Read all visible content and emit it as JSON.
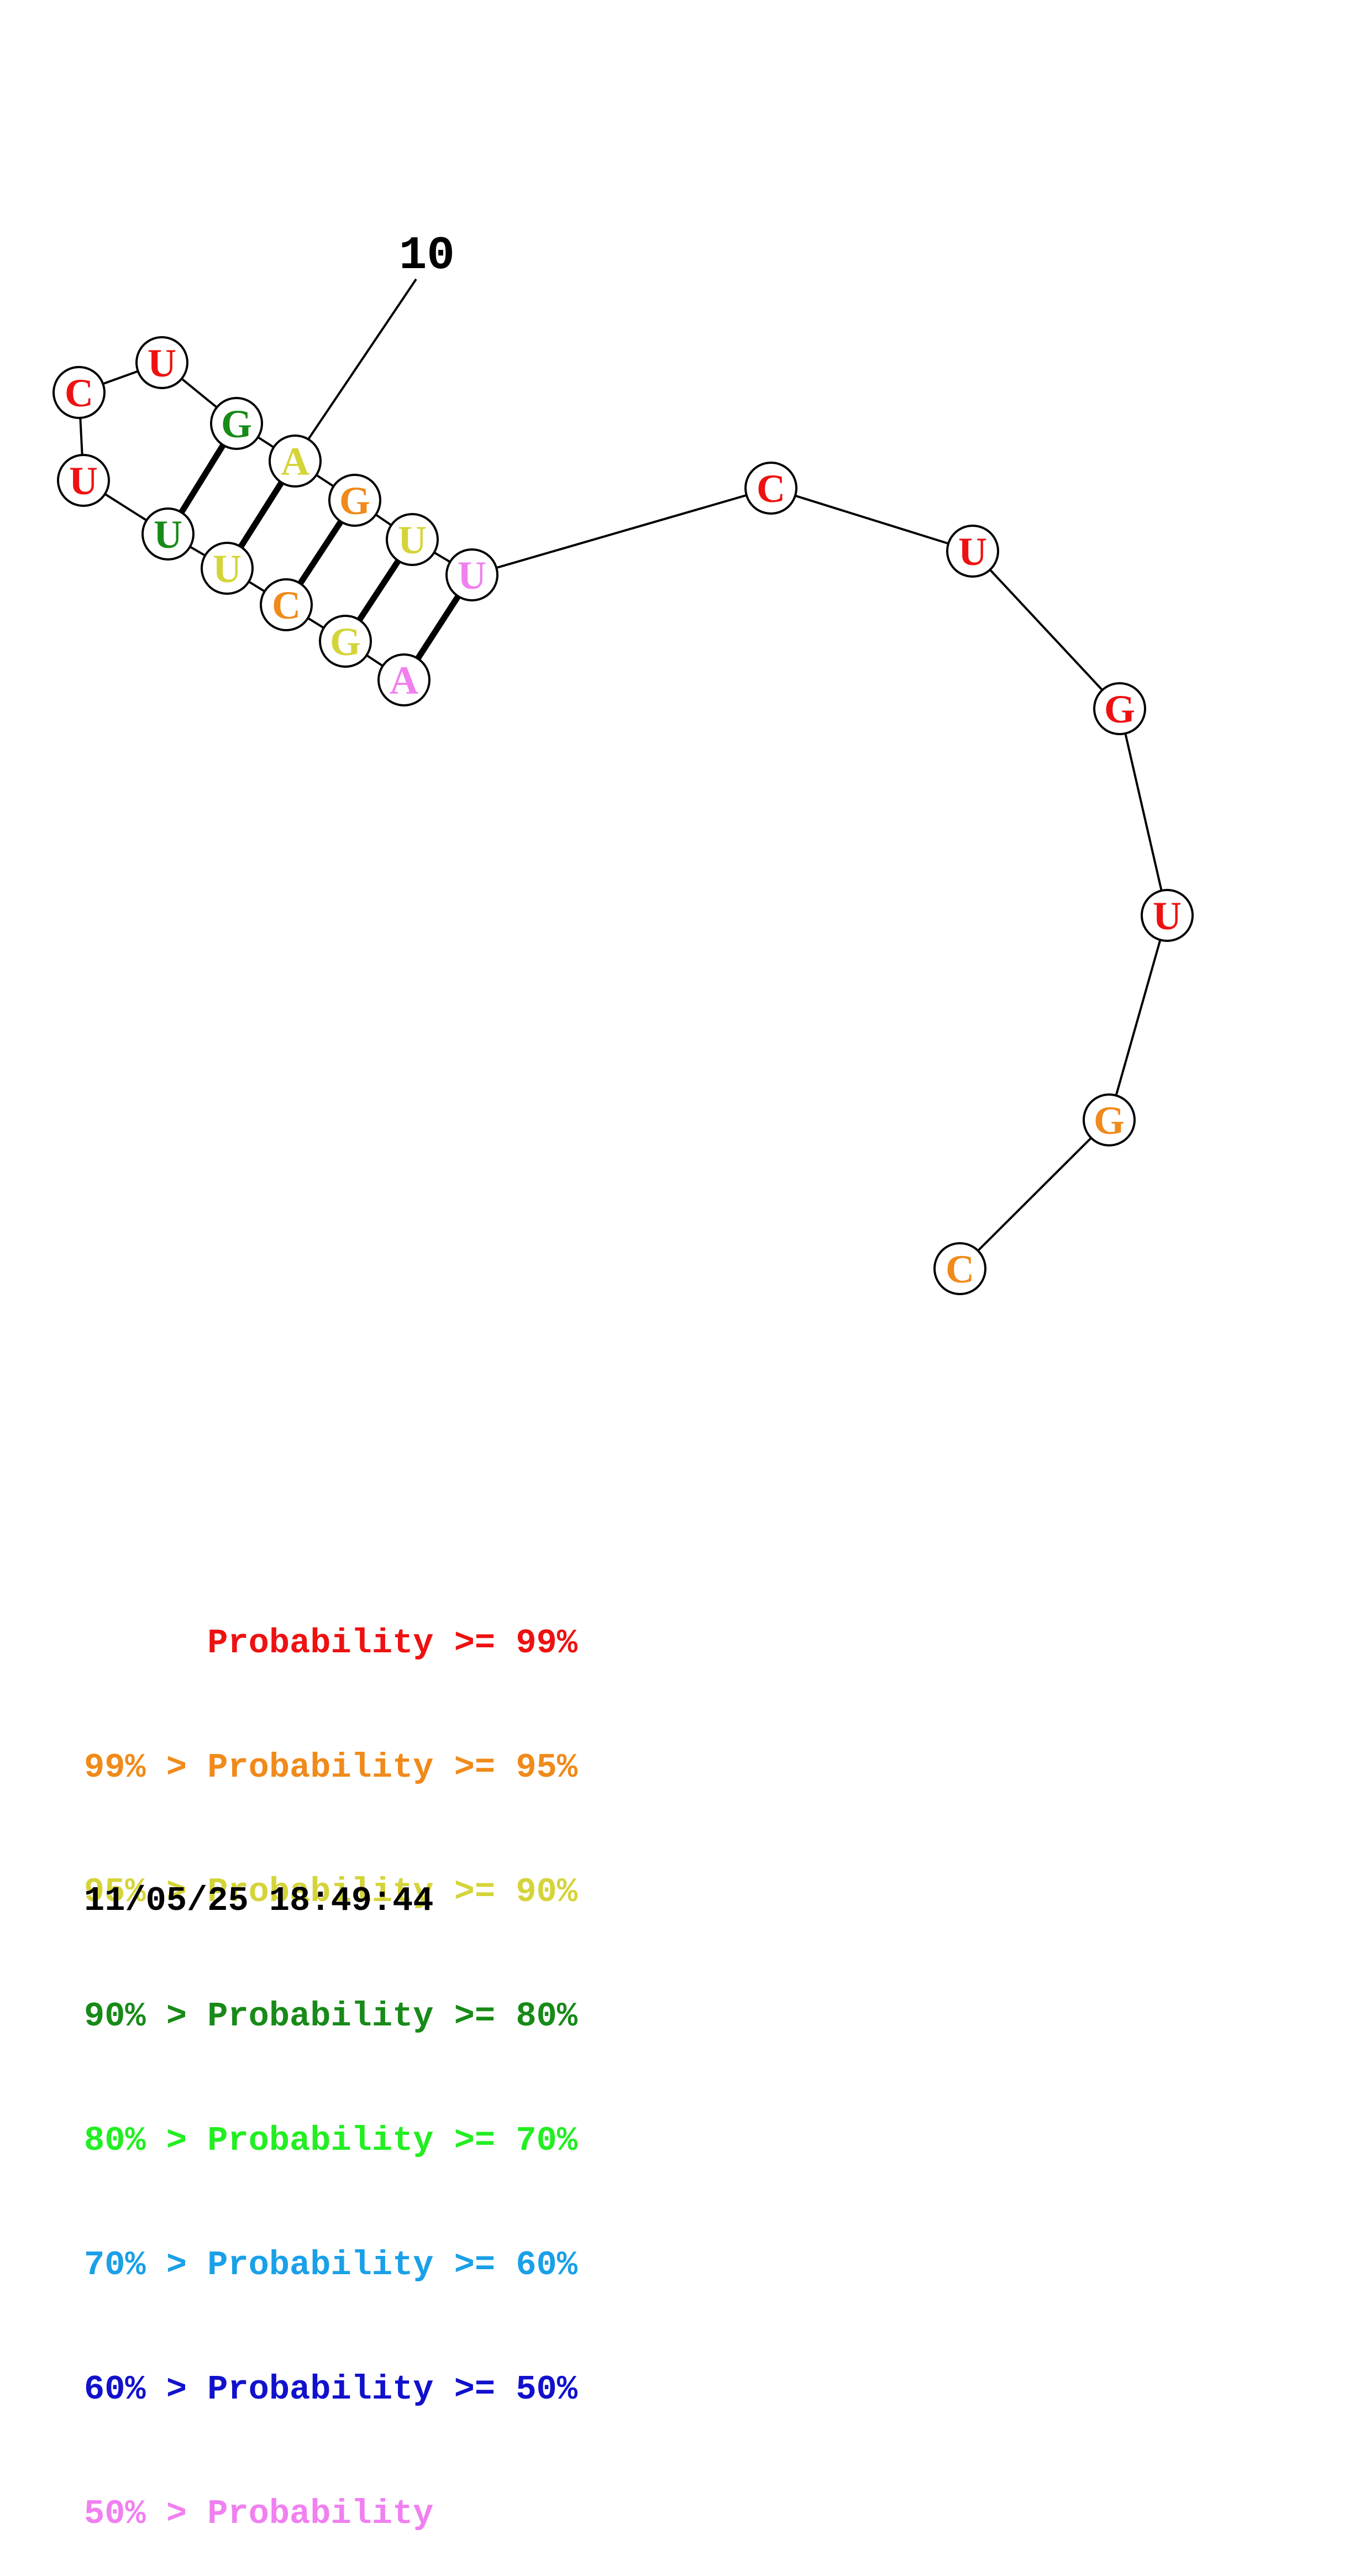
{
  "colors": {
    "p99": "#ee1111",
    "p95": "#f08a1a",
    "p90": "#d4d43a",
    "p80": "#188a18",
    "p70": "#22ee22",
    "p60": "#1aa0e8",
    "p50": "#1111cc",
    "below50": "#f080f0"
  },
  "structure": {
    "position_label": "10",
    "nucleotides": [
      {
        "base": "A",
        "prob_class": "below50"
      },
      {
        "base": "G",
        "prob_class": "p90"
      },
      {
        "base": "C",
        "prob_class": "p95"
      },
      {
        "base": "U",
        "prob_class": "p90"
      },
      {
        "base": "U",
        "prob_class": "p80"
      },
      {
        "base": "U",
        "prob_class": "p99"
      },
      {
        "base": "C",
        "prob_class": "p99"
      },
      {
        "base": "U",
        "prob_class": "p99"
      },
      {
        "base": "G",
        "prob_class": "p80"
      },
      {
        "base": "A",
        "prob_class": "p90"
      },
      {
        "base": "G",
        "prob_class": "p95"
      },
      {
        "base": "U",
        "prob_class": "p90"
      },
      {
        "base": "U",
        "prob_class": "below50"
      },
      {
        "base": "C",
        "prob_class": "p99"
      },
      {
        "base": "U",
        "prob_class": "p99"
      },
      {
        "base": "G",
        "prob_class": "p99"
      },
      {
        "base": "U",
        "prob_class": "p99"
      },
      {
        "base": "G",
        "prob_class": "p95"
      },
      {
        "base": "C",
        "prob_class": "p95"
      }
    ]
  },
  "legend": [
    {
      "text": "      Probability >= 99%",
      "color_key": "p99"
    },
    {
      "text": "99% > Probability >= 95%",
      "color_key": "p95"
    },
    {
      "text": "95% > Probability >= 90%",
      "color_key": "p90"
    },
    {
      "text": "90% > Probability >= 80%",
      "color_key": "p80"
    },
    {
      "text": "80% > Probability >= 70%",
      "color_key": "p70"
    },
    {
      "text": "70% > Probability >= 60%",
      "color_key": "p60"
    },
    {
      "text": "60% > Probability >= 50%",
      "color_key": "p50"
    },
    {
      "text": "50% > Probability",
      "color_key": "below50"
    }
  ],
  "timestamp": "11/05/25 18:49:44"
}
